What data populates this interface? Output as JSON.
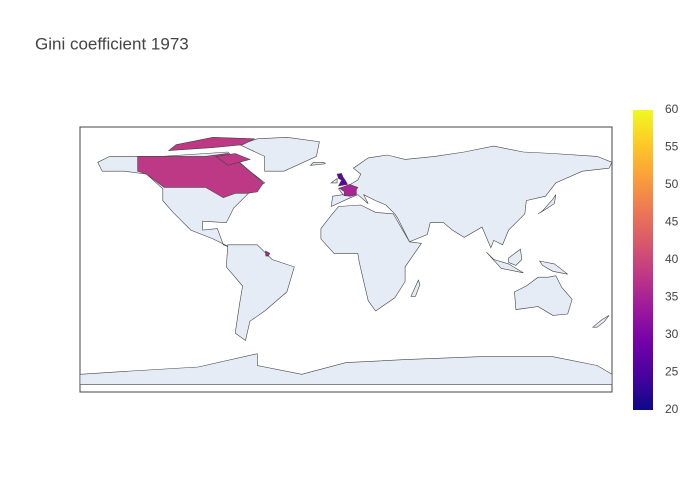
{
  "chart_data": {
    "type": "choropleth",
    "title": "Gini coefficient 1973",
    "values": [
      38,
      27,
      35
    ],
    "colorscale": [
      "#0d0887",
      "#46039f",
      "#7201a8",
      "#9c179e",
      "#bd3786",
      "#d8576b",
      "#ed7953",
      "#fb9f3a",
      "#fdca26",
      "#f0f921"
    ],
    "clim": [
      20,
      60
    ],
    "cticks": [
      20,
      25,
      30,
      35,
      40,
      45,
      50,
      55,
      60
    ]
  }
}
